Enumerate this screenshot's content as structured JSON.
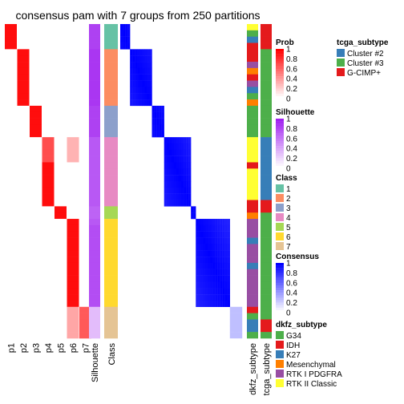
{
  "chart_data": {
    "type": "heatmap",
    "title": "consensus pam with 7 groups from 250 partitions",
    "n_samples": 50,
    "classes": [
      1,
      1,
      1,
      1,
      2,
      2,
      2,
      2,
      2,
      2,
      2,
      2,
      2,
      3,
      3,
      3,
      3,
      3,
      4,
      4,
      4,
      4,
      4,
      4,
      4,
      4,
      4,
      4,
      4,
      5,
      5,
      6,
      6,
      6,
      6,
      6,
      6,
      6,
      6,
      6,
      6,
      6,
      6,
      6,
      6,
      7,
      7,
      7,
      7,
      7
    ],
    "class_colors": {
      "1": "#66C2A5",
      "2": "#FC8D62",
      "3": "#8DA0CB",
      "4": "#E78AC3",
      "5": "#A6D854",
      "6": "#FFD92F",
      "7": "#E5C494"
    },
    "prob_columns": [
      "p1",
      "p2",
      "p3",
      "p4",
      "p5",
      "p6",
      "p7"
    ],
    "silhouette": [
      0.85,
      0.85,
      0.85,
      0.85,
      0.9,
      0.9,
      0.9,
      0.9,
      0.9,
      0.9,
      0.9,
      0.9,
      0.9,
      0.85,
      0.85,
      0.85,
      0.85,
      0.85,
      0.75,
      0.75,
      0.75,
      0.75,
      0.75,
      0.75,
      0.75,
      0.75,
      0.75,
      0.75,
      0.75,
      0.7,
      0.7,
      0.75,
      0.8,
      0.8,
      0.8,
      0.8,
      0.8,
      0.8,
      0.8,
      0.8,
      0.8,
      0.8,
      0.8,
      0.8,
      0.8,
      0.3,
      0.3,
      0.3,
      0.3,
      0.3
    ],
    "dkfz_subtype": [
      "RTK II Classic",
      "G34",
      "K27",
      "IDH",
      "IDH",
      "IDH",
      "RTK I PDGFRA",
      "Mesenchymal",
      "IDH",
      "RTK I PDGFRA",
      "K27",
      "G34",
      "Mesenchymal",
      "G34",
      "G34",
      "G34",
      "G34",
      "G34",
      "RTK II Classic",
      "RTK II Classic",
      "RTK II Classic",
      "RTK II Classic",
      "IDH",
      "RTK II Classic",
      "RTK II Classic",
      "RTK II Classic",
      "RTK II Classic",
      "RTK II Classic",
      "IDH",
      "IDH",
      "Mesenchymal",
      "RTK I PDGFRA",
      "RTK I PDGFRA",
      "RTK I PDGFRA",
      "K27",
      "RTK I PDGFRA",
      "RTK I PDGFRA",
      "RTK I PDGFRA",
      "K27",
      "RTK I PDGFRA",
      "RTK I PDGFRA",
      "RTK I PDGFRA",
      "RTK I PDGFRA",
      "RTK I PDGFRA",
      "RTK I PDGFRA",
      "IDH",
      "G34",
      "K27",
      "K27",
      "G34"
    ],
    "tcga_subtype": [
      "G-CIMP+",
      "G-CIMP+",
      "G-CIMP+",
      "G-CIMP+",
      "Cluster #3",
      "Cluster #3",
      "Cluster #3",
      "Cluster #3",
      "Cluster #3",
      "Cluster #3",
      "Cluster #3",
      "Cluster #3",
      "Cluster #3",
      "Cluster #3",
      "Cluster #3",
      "Cluster #3",
      "Cluster #3",
      "Cluster #3",
      "Cluster #2",
      "Cluster #2",
      "Cluster #2",
      "Cluster #2",
      "Cluster #2",
      "Cluster #2",
      "Cluster #2",
      "Cluster #2",
      "Cluster #2",
      "Cluster #2",
      "G-CIMP+",
      "G-CIMP+",
      "Cluster #3",
      "Cluster #3",
      "Cluster #3",
      "Cluster #3",
      "Cluster #3",
      "Cluster #3",
      "Cluster #3",
      "Cluster #3",
      "Cluster #3",
      "Cluster #3",
      "Cluster #3",
      "Cluster #3",
      "Cluster #3",
      "Cluster #3",
      "Cluster #3",
      "Cluster #3",
      "Cluster #3",
      "G-CIMP+",
      "G-CIMP+",
      "Cluster #3"
    ],
    "bottom_labels": [
      "p1",
      "p2",
      "p3",
      "p4",
      "p5",
      "p6",
      "p7",
      "Silhouette",
      "Class",
      "dkfz_subtype",
      "tcga_subtype"
    ],
    "legends": {
      "prob": {
        "title": "Prob",
        "ticks": [
          "1",
          "0.8",
          "0.6",
          "0.4",
          "0.2",
          "0"
        ],
        "color": "#FF0000"
      },
      "silhouette": {
        "title": "Silhouette",
        "ticks": [
          "1",
          "0.8",
          "0.6",
          "0.4",
          "0.2",
          "0"
        ],
        "color": "#A020F0"
      },
      "class": {
        "title": "Class",
        "items": [
          "1",
          "2",
          "3",
          "4",
          "5",
          "6",
          "7"
        ]
      },
      "consensus": {
        "title": "Consensus",
        "ticks": [
          "1",
          "0.8",
          "0.6",
          "0.4",
          "0.2",
          "0"
        ],
        "color": "#0000FF"
      },
      "tcga": {
        "title": "tcga_subtype",
        "items": [
          {
            "label": "Cluster #2",
            "color": "#377EB8"
          },
          {
            "label": "Cluster #3",
            "color": "#4DAF4A"
          },
          {
            "label": "G-CIMP+",
            "color": "#E41A1C"
          }
        ]
      },
      "dkfz": {
        "title": "dkfz_subtype",
        "items": [
          {
            "label": "G34",
            "color": "#4DAF4A"
          },
          {
            "label": "IDH",
            "color": "#E41A1C"
          },
          {
            "label": "K27",
            "color": "#377EB8"
          },
          {
            "label": "Mesenchymal",
            "color": "#FF7F00"
          },
          {
            "label": "RTK I PDGFRA",
            "color": "#984EA3"
          },
          {
            "label": "RTK II Classic",
            "color": "#FFFF33"
          }
        ]
      }
    }
  }
}
